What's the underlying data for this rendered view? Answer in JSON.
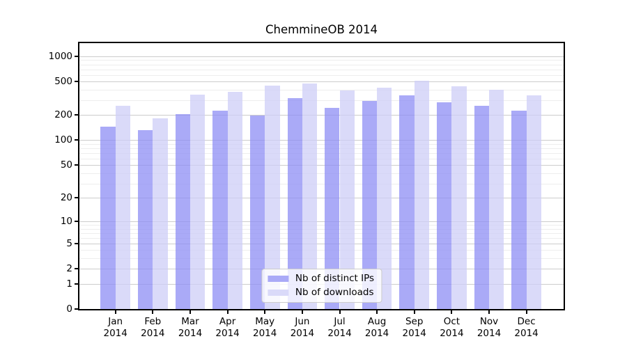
{
  "figure": {
    "background": "#ffffff"
  },
  "chart_data": {
    "type": "bar",
    "title": "ChemmineOB 2014",
    "categories": [
      "Jan 2014",
      "Feb 2014",
      "Mar 2014",
      "Apr 2014",
      "May 2014",
      "Jun 2014",
      "Jul 2014",
      "Aug 2014",
      "Sep 2014",
      "Oct 2014",
      "Nov 2014",
      "Dec 2014"
    ],
    "series": [
      {
        "name": "Nb of distinct IPs",
        "color": "rgba(141,141,244,0.75)",
        "swatch": "#aaaaf7",
        "values": [
          144,
          131,
          203,
          225,
          196,
          317,
          245,
          295,
          345,
          285,
          260,
          226
        ]
      },
      {
        "name": "Nb of downloads",
        "color": "rgba(206,206,247,0.75)",
        "swatch": "#dadaf9",
        "values": [
          258,
          184,
          350,
          375,
          450,
          475,
          390,
          420,
          508,
          440,
          403,
          344
        ]
      }
    ],
    "xlabel": "",
    "ylabel": "",
    "yscale": "log1p",
    "ylim": [
      0,
      1430
    ],
    "y_major_ticks": [
      0,
      1,
      2,
      5,
      10,
      20,
      50,
      100,
      200,
      500,
      1000
    ],
    "y_minor_ticks": [
      3,
      4,
      6,
      7,
      8,
      9,
      30,
      40,
      60,
      70,
      80,
      90,
      300,
      400,
      600,
      700,
      800,
      900
    ],
    "grid": true,
    "legend_position": "lower center"
  },
  "colors": {
    "grid_major": "#cccccc",
    "grid_minor": "#ededed",
    "axis": "#000000",
    "text": "#000000"
  }
}
